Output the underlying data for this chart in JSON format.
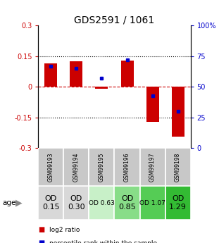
{
  "title": "GDS2591 / 1061",
  "samples": [
    "GSM99193",
    "GSM99194",
    "GSM99195",
    "GSM99196",
    "GSM99197",
    "GSM99198"
  ],
  "log2_ratio": [
    0.115,
    0.125,
    -0.01,
    0.13,
    -0.17,
    -0.245
  ],
  "percentile_rank": [
    67,
    65,
    57,
    72,
    43,
    30
  ],
  "ylim": [
    -0.3,
    0.3
  ],
  "yticks": [
    -0.3,
    -0.15,
    0,
    0.15,
    0.3
  ],
  "ytick_labels_left": [
    "-0.3",
    "-0.15",
    "0",
    "0.15",
    "0.3"
  ],
  "ytick_labels_right": [
    "0",
    "25",
    "50",
    "75",
    "100%"
  ],
  "hlines_dotted": [
    -0.15,
    0.15
  ],
  "hline_dashed": 0.0,
  "bar_width": 0.5,
  "red_color": "#cc0000",
  "blue_color": "#0000cc",
  "gray_cell": "#c8c8c8",
  "age_labels": [
    "OD\n0.15",
    "OD\n0.30",
    "OD 0.63",
    "OD\n0.85",
    "OD 1.07",
    "OD\n1.29"
  ],
  "age_bg_colors": [
    "#d8d8d8",
    "#d8d8d8",
    "#c8f0c8",
    "#88dd88",
    "#55cc55",
    "#33bb33"
  ],
  "age_font_sizes": [
    8,
    8,
    6.5,
    8,
    6.5,
    8
  ],
  "legend_red": "log2 ratio",
  "legend_blue": "percentile rank within the sample"
}
